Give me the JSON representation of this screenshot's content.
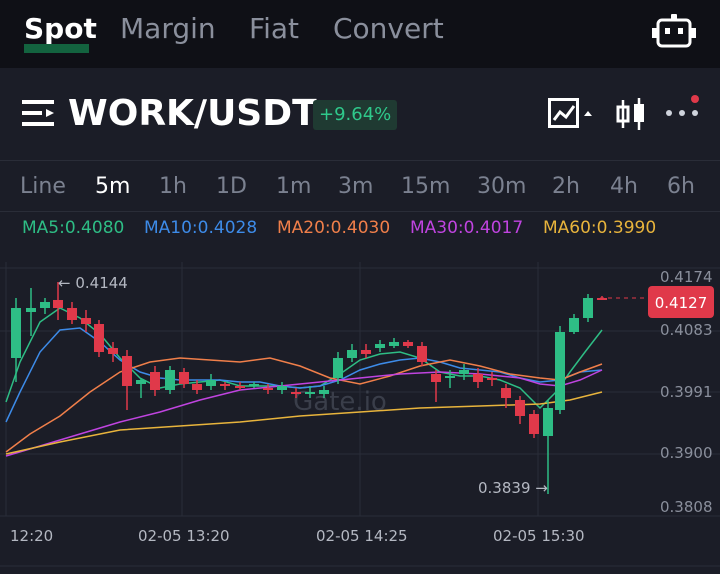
{
  "tabs": [
    {
      "label": "Spot"
    },
    {
      "label": "Margin"
    },
    {
      "label": "Fiat"
    },
    {
      "label": "Convert"
    }
  ],
  "pair": {
    "name": "WORK/USDT",
    "change": "+9.64%"
  },
  "intervals": [
    {
      "label": "Line"
    },
    {
      "label": "5m"
    },
    {
      "label": "1h"
    },
    {
      "label": "1D"
    },
    {
      "label": "1m"
    },
    {
      "label": "3m"
    },
    {
      "label": "15m"
    },
    {
      "label": "30m"
    },
    {
      "label": "2h"
    },
    {
      "label": "4h"
    },
    {
      "label": "6h"
    }
  ],
  "ma": [
    {
      "label": "MA5:0.4080",
      "color": "#2ebd85"
    },
    {
      "label": "MA10:0.4028",
      "color": "#3d8be8"
    },
    {
      "label": "MA20:0.4030",
      "color": "#f07f4a"
    },
    {
      "label": "MA30:0.4017",
      "color": "#c044e0"
    },
    {
      "label": "MA60:0.3990",
      "color": "#e8b43c"
    }
  ],
  "chart_data": {
    "type": "candlestick",
    "price_ticks": [
      "0.4174",
      "0.4083",
      "0.3991",
      "0.3900",
      "0.3808"
    ],
    "time_labels": [
      "12:20",
      "02-05 13:20",
      "02-05 14:25",
      "02-05 15:30"
    ],
    "current_price": "0.4127",
    "high_label": "← 0.4144",
    "low_label": "0.3839 →",
    "watermark": "Gate.io",
    "colors": {
      "up": "#2ebd85",
      "down": "#e0394a"
    }
  }
}
